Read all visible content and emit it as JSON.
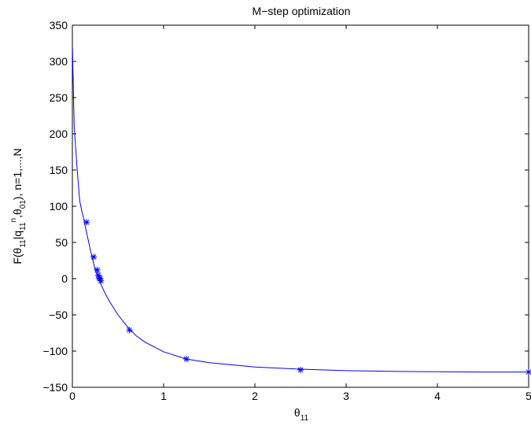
{
  "chart_data": {
    "type": "line",
    "title": "M−step optimization",
    "xlabel": {
      "base": "θ",
      "sub": "11"
    },
    "ylabel": {
      "segments": [
        {
          "t": "F(θ",
          "s": "n"
        },
        {
          "t": "11",
          "s": "sub"
        },
        {
          "t": "|q",
          "s": "n"
        },
        {
          "t": "11",
          "s": "sub"
        },
        {
          "t": "n",
          "s": "sup"
        },
        {
          "t": ",θ",
          "s": "n"
        },
        {
          "t": "01",
          "s": "sub"
        },
        {
          "t": "), n=1,...,N",
          "s": "n"
        }
      ]
    },
    "xlim": [
      0,
      5
    ],
    "ylim": [
      -150,
      350
    ],
    "x_ticks": [
      0,
      1,
      2,
      3,
      4,
      5
    ],
    "y_ticks": [
      -150,
      -100,
      -50,
      0,
      50,
      100,
      150,
      200,
      250,
      300,
      350
    ],
    "x_tick_labels": [
      "0",
      "1",
      "2",
      "3",
      "4",
      "5"
    ],
    "y_tick_labels": [
      "−150",
      "−100",
      "−50",
      "0",
      "50",
      "100",
      "150",
      "200",
      "250",
      "300",
      "350"
    ],
    "grid": false,
    "color": "#0000ff",
    "series": [
      {
        "style": "line",
        "x": [
          0.001,
          0.02,
          0.05,
          0.08,
          0.1,
          0.12,
          0.15,
          0.2,
          0.25,
          0.3,
          0.35,
          0.4,
          0.5,
          0.6,
          0.7,
          0.8,
          1.0,
          1.25,
          1.5,
          2.0,
          2.5,
          3.0,
          3.5,
          4.0,
          4.5,
          5.0
        ],
        "y": [
          320,
          210,
          155,
          108,
          95,
          85,
          67,
          38,
          12,
          -4,
          -18,
          -30,
          -50,
          -66,
          -79,
          -88,
          -101,
          -111,
          -116,
          -122,
          -125,
          -127,
          -128,
          -128.5,
          -129,
          -129
        ]
      },
      {
        "style": "markers",
        "marker": "*",
        "x": [
          0.156,
          0.234,
          0.273,
          0.283,
          0.293,
          0.303,
          0.313,
          0.625,
          1.25,
          2.5,
          5.0
        ],
        "y": [
          78,
          30,
          12,
          5,
          1,
          0,
          -3,
          -71,
          -111,
          -126,
          -129
        ]
      }
    ]
  }
}
